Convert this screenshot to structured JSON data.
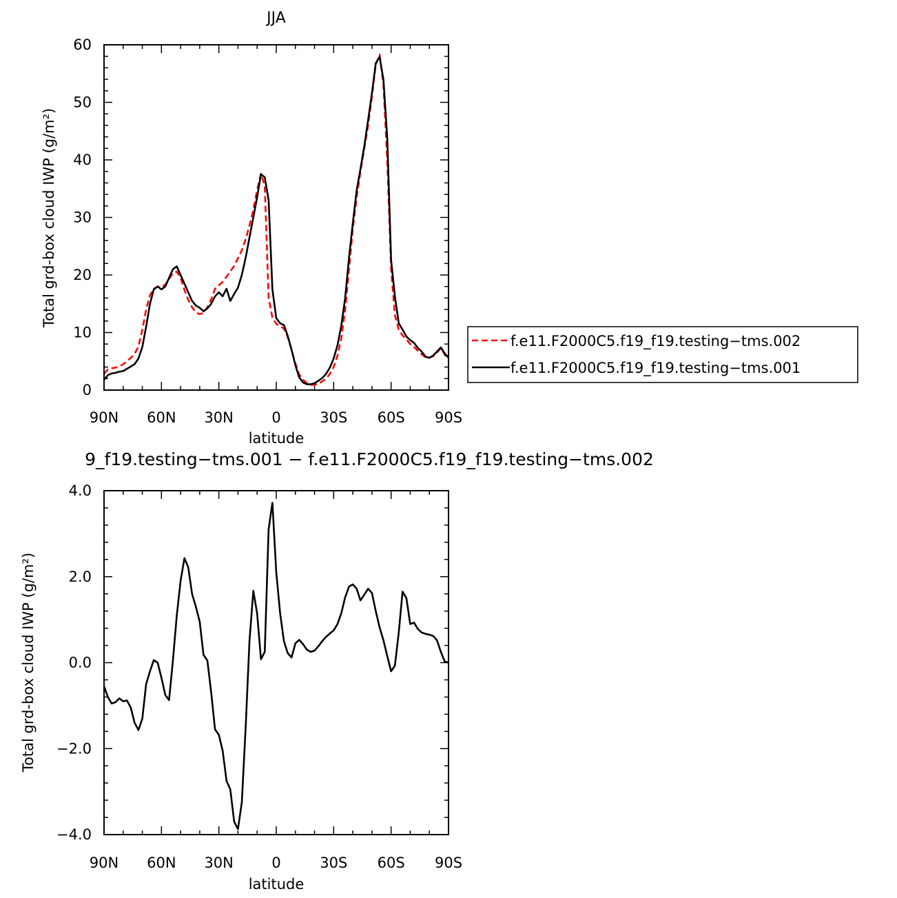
{
  "chart_data": [
    {
      "type": "line",
      "title": "JJA",
      "xlabel": "latitude",
      "ylabel": "Total grd-box cloud IWP (g/m²)",
      "xlim": [
        -90,
        90
      ],
      "ylim": [
        0,
        60
      ],
      "x_tick_labels": [
        "90N",
        "60N",
        "30N",
        "0",
        "30S",
        "60S",
        "90S"
      ],
      "y_tick_labels": [
        "0",
        "10",
        "20",
        "30",
        "40",
        "50",
        "60"
      ],
      "legend_position": "right",
      "series": [
        {
          "name": "f.e11.F2000C5.f19_f19.testing−tms.002",
          "color": "#ff0000",
          "dash": "dashed",
          "x": [
            -90,
            -88,
            -86,
            -84,
            -82,
            -80,
            -78,
            -76,
            -74,
            -72,
            -70,
            -68,
            -66,
            -64,
            -62,
            -60,
            -58,
            -56,
            -54,
            -52,
            -50,
            -48,
            -46,
            -44,
            -42,
            -40,
            -38,
            -36,
            -34,
            -32,
            -30,
            -28,
            -26,
            -24,
            -22,
            -20,
            -18,
            -16,
            -14,
            -12,
            -10,
            -8,
            -6,
            -4,
            -2,
            0,
            2,
            4,
            6,
            8,
            10,
            12,
            14,
            16,
            18,
            20,
            22,
            24,
            26,
            28,
            30,
            32,
            34,
            36,
            38,
            40,
            42,
            44,
            46,
            48,
            50,
            52,
            54,
            56,
            58,
            60,
            62,
            64,
            66,
            68,
            70,
            72,
            74,
            76,
            78,
            80,
            82,
            84,
            86,
            88,
            90
          ],
          "values": [
            2.8,
            3.6,
            3.8,
            3.9,
            4.1,
            4.5,
            5.0,
            5.6,
            6.3,
            7.6,
            10.5,
            14.0,
            16.5,
            17.6,
            18.0,
            18.0,
            18.3,
            19.3,
            20.3,
            20.6,
            19.5,
            17.4,
            15.7,
            14.4,
            13.5,
            13.2,
            13.4,
            14.4,
            15.8,
            17.6,
            18.2,
            18.8,
            19.7,
            20.6,
            21.6,
            22.9,
            24.3,
            26.2,
            28.6,
            31.3,
            34.8,
            37.6,
            35.5,
            16.0,
            12.6,
            11.5,
            11.1,
            10.7,
            9.2,
            7.0,
            4.6,
            2.7,
            1.8,
            1.2,
            0.9,
            0.9,
            1.1,
            1.5,
            2.0,
            2.8,
            4.0,
            6.0,
            9.0,
            14.0,
            21.0,
            28.0,
            33.5,
            38.0,
            42.0,
            46.0,
            51.0,
            56.5,
            58.3,
            53.0,
            40.0,
            21.0,
            13.0,
            10.5,
            9.5,
            8.8,
            8.0,
            7.5,
            6.8,
            6.2,
            5.7,
            5.6,
            5.9,
            6.5,
            7.3,
            6.2,
            5.4
          ]
        },
        {
          "name": "f.e11.F2000C5.f19_f19.testing−tms.001",
          "color": "#000000",
          "dash": "solid",
          "x": [
            -90,
            -88,
            -86,
            -84,
            -82,
            -80,
            -78,
            -76,
            -74,
            -72,
            -70,
            -68,
            -66,
            -64,
            -62,
            -60,
            -58,
            -56,
            -54,
            -52,
            -50,
            -48,
            -46,
            -44,
            -42,
            -40,
            -38,
            -36,
            -34,
            -32,
            -30,
            -28,
            -26,
            -24,
            -22,
            -20,
            -18,
            -16,
            -14,
            -12,
            -10,
            -8,
            -6,
            -4,
            -2,
            0,
            2,
            4,
            6,
            8,
            10,
            12,
            14,
            16,
            18,
            20,
            22,
            24,
            26,
            28,
            30,
            32,
            34,
            36,
            38,
            40,
            42,
            44,
            46,
            48,
            50,
            52,
            54,
            56,
            58,
            60,
            62,
            64,
            66,
            68,
            70,
            72,
            74,
            76,
            78,
            80,
            82,
            84,
            86,
            88,
            90
          ],
          "values": [
            1.8,
            2.6,
            2.9,
            3.0,
            3.2,
            3.3,
            3.7,
            4.1,
            4.5,
            5.5,
            7.5,
            11.0,
            15.0,
            17.5,
            18.0,
            17.5,
            18.0,
            19.5,
            21.0,
            21.5,
            20.0,
            18.5,
            17.0,
            15.5,
            14.7,
            14.3,
            13.7,
            14.2,
            15.0,
            16.3,
            17.0,
            16.3,
            17.6,
            15.5,
            16.7,
            17.8,
            20.0,
            23.0,
            26.5,
            30.0,
            33.5,
            37.5,
            37.0,
            33.0,
            17.5,
            12.5,
            11.6,
            11.3,
            9.4,
            7.0,
            4.3,
            2.2,
            1.3,
            1.0,
            1.0,
            1.2,
            1.6,
            2.1,
            2.8,
            3.9,
            5.5,
            7.8,
            11.2,
            16.0,
            23.0,
            29.0,
            34.7,
            38.4,
            42.4,
            46.9,
            51.6,
            56.8,
            57.9,
            53.9,
            43.8,
            22.6,
            16.3,
            11.6,
            10.5,
            9.3,
            8.7,
            8.2,
            7.3,
            6.7,
            5.8,
            5.6,
            6.0,
            6.7,
            7.4,
            6.4,
            5.6
          ]
        }
      ]
    },
    {
      "type": "line",
      "title": "9_f19.testing−tms.001 − f.e11.F2000C5.f19_f19.testing−tms.002",
      "xlabel": "latitude",
      "ylabel": "Total grd-box cloud IWP (g/m²)",
      "xlim": [
        -90,
        90
      ],
      "ylim": [
        -4.0,
        4.0
      ],
      "x_tick_labels": [
        "90N",
        "60N",
        "30N",
        "0",
        "30S",
        "60S",
        "90S"
      ],
      "y_tick_labels": [
        "−4.0",
        "−2.0",
        "0.0",
        "2.0",
        "4.0"
      ],
      "series": [
        {
          "color": "#000000",
          "dash": "solid",
          "x": [
            -90,
            -88,
            -86,
            -84,
            -82,
            -80,
            -78,
            -76,
            -74,
            -72,
            -70,
            -68,
            -66,
            -64,
            -62,
            -60,
            -58,
            -56,
            -54,
            -52,
            -50,
            -48,
            -46,
            -44,
            -42,
            -40,
            -38,
            -36,
            -34,
            -32,
            -30,
            -28,
            -26,
            -24,
            -22,
            -20,
            -18,
            -16,
            -14,
            -12,
            -10,
            -8,
            -6,
            -4,
            -2,
            0,
            2,
            4,
            6,
            8,
            10,
            12,
            14,
            16,
            18,
            20,
            22,
            24,
            26,
            28,
            30,
            32,
            34,
            36,
            38,
            40,
            42,
            44,
            46,
            48,
            50,
            52,
            54,
            56,
            58,
            60,
            62,
            64,
            66,
            68,
            70,
            72,
            74,
            76,
            78,
            80,
            82,
            84,
            86,
            88,
            90
          ],
          "values": [
            -0.55,
            -0.8,
            -0.95,
            -0.92,
            -0.83,
            -0.9,
            -0.88,
            -1.05,
            -1.4,
            -1.57,
            -1.3,
            -0.5,
            -0.2,
            0.06,
            0.0,
            -0.35,
            -0.75,
            -0.87,
            0.05,
            1.1,
            1.9,
            2.43,
            2.22,
            1.6,
            1.3,
            0.95,
            0.18,
            0.05,
            -0.7,
            -1.55,
            -1.68,
            -2.05,
            -2.75,
            -2.95,
            -3.7,
            -3.87,
            -3.25,
            -1.5,
            0.5,
            1.67,
            1.15,
            0.08,
            0.25,
            3.1,
            3.72,
            2.1,
            1.15,
            0.5,
            0.22,
            0.12,
            0.45,
            0.53,
            0.43,
            0.3,
            0.25,
            0.28,
            0.38,
            0.5,
            0.6,
            0.68,
            0.75,
            0.9,
            1.15,
            1.52,
            1.77,
            1.82,
            1.72,
            1.45,
            1.58,
            1.72,
            1.62,
            1.2,
            0.82,
            0.52,
            0.15,
            -0.2,
            -0.07,
            0.7,
            1.65,
            1.5,
            0.9,
            0.93,
            0.78,
            0.7,
            0.67,
            0.65,
            0.62,
            0.52,
            0.25,
            0.03,
            0.0
          ]
        }
      ]
    }
  ]
}
